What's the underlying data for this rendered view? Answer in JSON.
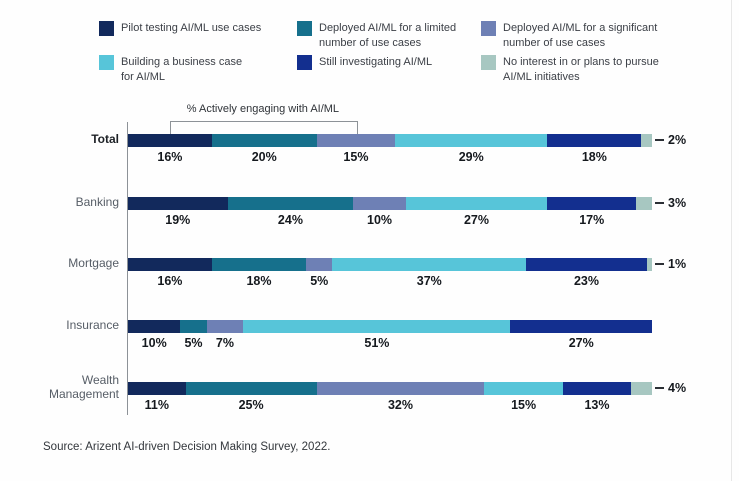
{
  "legend": {
    "items": [
      {
        "label": "Pilot testing AI/ML use cases",
        "color": "#12295c"
      },
      {
        "label": "Deployed AI/ML for a limited\nnumber of use cases",
        "color": "#16708c"
      },
      {
        "label": "Deployed AI/ML for a significant\nnumber of use cases",
        "color": "#6e80b5"
      },
      {
        "label": "Building a business case\nfor AI/ML",
        "color": "#57c5d9"
      },
      {
        "label": "Still investigating AI/ML",
        "color": "#132f8f"
      },
      {
        "label": "No interest in or plans to pursue\nAI/ML initiatives",
        "color": "#a7c7c1"
      }
    ]
  },
  "chart_data": {
    "type": "bar",
    "orientation": "horizontal",
    "stacked": true,
    "unit": "%",
    "annotation": "% Actively engaging with AI/ML",
    "annotation_note": "bracket spans the first three segments of the Total row",
    "legend_position": "top",
    "xlim": [
      0,
      100
    ],
    "series_names": [
      "Pilot testing AI/ML use cases",
      "Deployed AI/ML for a limited number of use cases",
      "Deployed AI/ML for a significant number of use cases",
      "Building a business case for AI/ML",
      "Still investigating AI/ML",
      "No interest in or plans to pursue AI/ML initiatives"
    ],
    "categories": [
      "Total",
      "Banking",
      "Mortgage",
      "Insurance",
      "Wealth Management"
    ],
    "rows": [
      {
        "category": "Total",
        "values": [
          16,
          20,
          15,
          29,
          18,
          2
        ]
      },
      {
        "category": "Banking",
        "values": [
          19,
          24,
          10,
          27,
          17,
          3
        ]
      },
      {
        "category": "Mortgage",
        "values": [
          16,
          18,
          5,
          37,
          23,
          1
        ]
      },
      {
        "category": "Insurance",
        "values": [
          10,
          5,
          7,
          51,
          27,
          0
        ]
      },
      {
        "category": "Wealth Management",
        "values": [
          11,
          25,
          32,
          15,
          13,
          4
        ]
      }
    ]
  },
  "source": {
    "text": "Source: Arizent AI-driven Decision Making Survey, 2022."
  }
}
